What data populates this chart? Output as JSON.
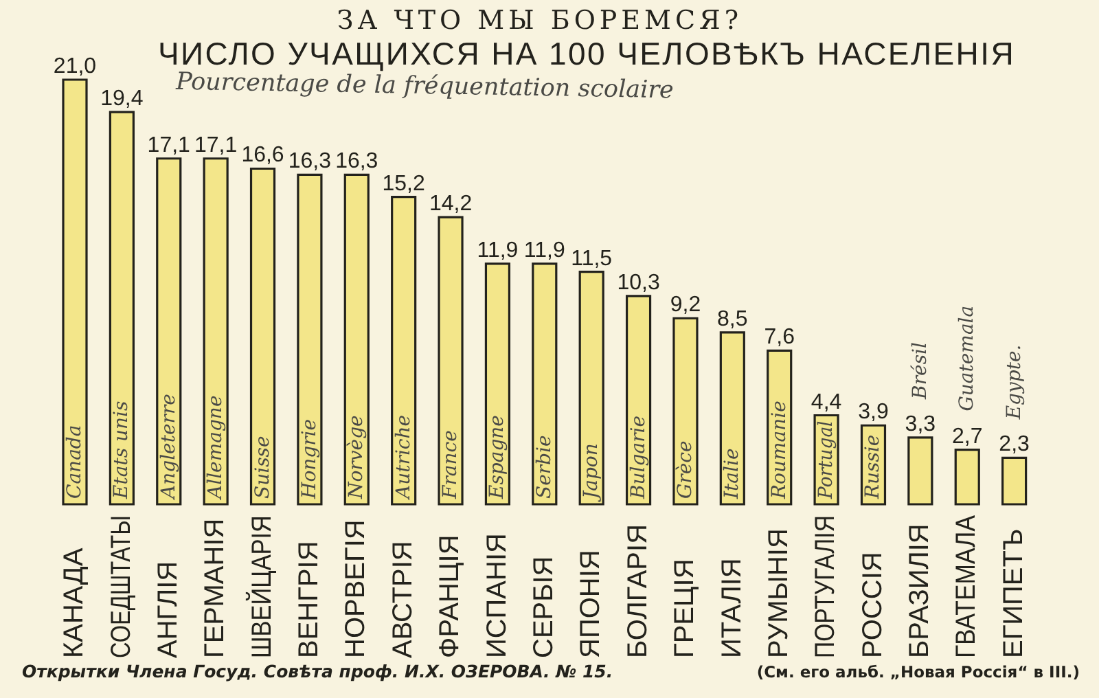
{
  "chart_data": {
    "type": "bar",
    "title": "ЗА ЧТО МЫ БОРЕМСЯ?",
    "subtitle": "ЧИСЛО УЧАЩИХСЯ НА 100 ЧЕЛОВѢКЪ НАСЕЛЕНІЯ",
    "categories": [
      "КАНАДА",
      "СОЕДШТАТЫ",
      "АНГЛІЯ",
      "ГЕРМАНІЯ",
      "ШВЕЙЦАРІЯ",
      "ВЕНГРІЯ",
      "НОРВЕГІЯ",
      "АВСТРІЯ",
      "ФРАНЦІЯ",
      "ИСПАНІЯ",
      "СЕРБІЯ",
      "ЯПОНІЯ",
      "БОЛГАРІЯ",
      "ГРЕЦІЯ",
      "ИТАЛІЯ",
      "РУМЫНІЯ",
      "ПОРТУГАЛІЯ",
      "РОССІЯ",
      "БРАЗИЛІЯ",
      "ГВАТЕМАЛА",
      "ЕГИПЕТЪ"
    ],
    "values": [
      21.0,
      19.4,
      17.1,
      17.1,
      16.6,
      16.3,
      16.3,
      15.2,
      14.2,
      11.9,
      11.9,
      11.5,
      10.3,
      9.2,
      8.5,
      7.6,
      4.4,
      3.9,
      3.3,
      2.7,
      2.3
    ],
    "value_labels": [
      "21,0",
      "19,4",
      "17,1",
      "17,1",
      "16,6",
      "16,3",
      "16,3",
      "15,2",
      "14,2",
      "11,9",
      "11,9",
      "11,5",
      "10,3",
      "9,2",
      "8,5",
      "7,6",
      "4,4",
      "3,9",
      "3,3",
      "2,7",
      "2,3"
    ],
    "color": "#f3e68a",
    "annotations": [
      "Pourcentage de la fréquentation scolaire",
      "Открытки Члена Госуд. Совѣта проф. И.Х. ОЗЕРОВА. № 15.",
      "(См. его альб. „Новая Россія“ в III.)",
      "Canada",
      "Etats unis",
      "Angleterre",
      "Allemagne",
      "Suisse",
      "Hongrie",
      "Norvège",
      "Autriche",
      "France",
      "Espagne",
      "Serbie",
      "Japon",
      "Bulgarie",
      "Grèce",
      "Italie",
      "Roumanie",
      "Portugal",
      "Russie",
      "Brésil",
      "Guatemala",
      "Egypte."
    ]
  }
}
